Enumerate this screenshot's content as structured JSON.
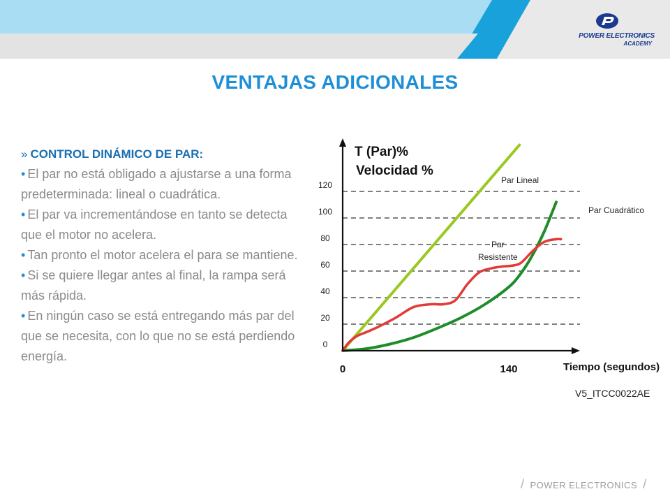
{
  "header": {
    "logo": {
      "name": "POWER ELECTRONICS",
      "sub": "ACADEMY"
    }
  },
  "title": "VENTAJAS ADICIONALES",
  "content": {
    "marker": "»",
    "heading": "CONTROL DINÁMICO DE PAR:",
    "bullet_symbol": "•",
    "bullets": [
      "El par no está obligado a ajustarse a una forma predeterminada: lineal o cuadrática.",
      "El par va incrementándose en tanto se detecta que el motor no acelera.",
      "Tan pronto el motor acelera el para se mantiene.",
      "Si se quiere llegar antes al final, la rampa será más rápida.",
      "En ningún caso se está entregando más par del que se necesita, con lo que no se está perdiendo energía."
    ]
  },
  "chart_data": {
    "type": "line",
    "title": "",
    "ylabel_line1": "T (Par)%",
    "ylabel_line2": "Velocidad %",
    "xlabel": "Tiempo (segundos)",
    "y_ticks": [
      "0",
      "20",
      "40",
      "60",
      "80",
      "100",
      "120"
    ],
    "x_ticks": [
      "0",
      "140"
    ],
    "ylim": [
      0,
      160
    ],
    "xlim": [
      0,
      200
    ],
    "grid": "dashed horizontal",
    "series": [
      {
        "name": "Par Lineal",
        "color": "#9ac820",
        "x": [
          0,
          149
        ],
        "y": [
          0,
          155
        ]
      },
      {
        "name": "Par Cuadrático",
        "color": "#1f8c2a",
        "x": [
          0,
          20,
          40,
          60,
          80,
          100,
          120,
          140,
          150,
          160,
          170,
          180
        ],
        "y": [
          0,
          1.5,
          5,
          10,
          17,
          25,
          35,
          48,
          58,
          72,
          90,
          112
        ]
      },
      {
        "name": "Par Resistente",
        "color": "#e23a36",
        "x": [
          0,
          5,
          12,
          20,
          30,
          45,
          60,
          75,
          85,
          95,
          105,
          115,
          125,
          135,
          142,
          150,
          160,
          170,
          180,
          184
        ],
        "y": [
          0,
          6,
          11,
          14,
          18,
          25,
          33,
          35,
          35,
          38,
          50,
          59,
          62,
          63.5,
          64,
          66,
          75,
          82,
          84,
          84
        ]
      }
    ],
    "annotations": [
      "Par Lineal",
      "Par Cuadrático",
      "Par",
      "Resistente"
    ],
    "code": "V5_ITCC0022AE"
  },
  "footer": {
    "slash": "/",
    "text": "POWER ELECTRONICS"
  }
}
